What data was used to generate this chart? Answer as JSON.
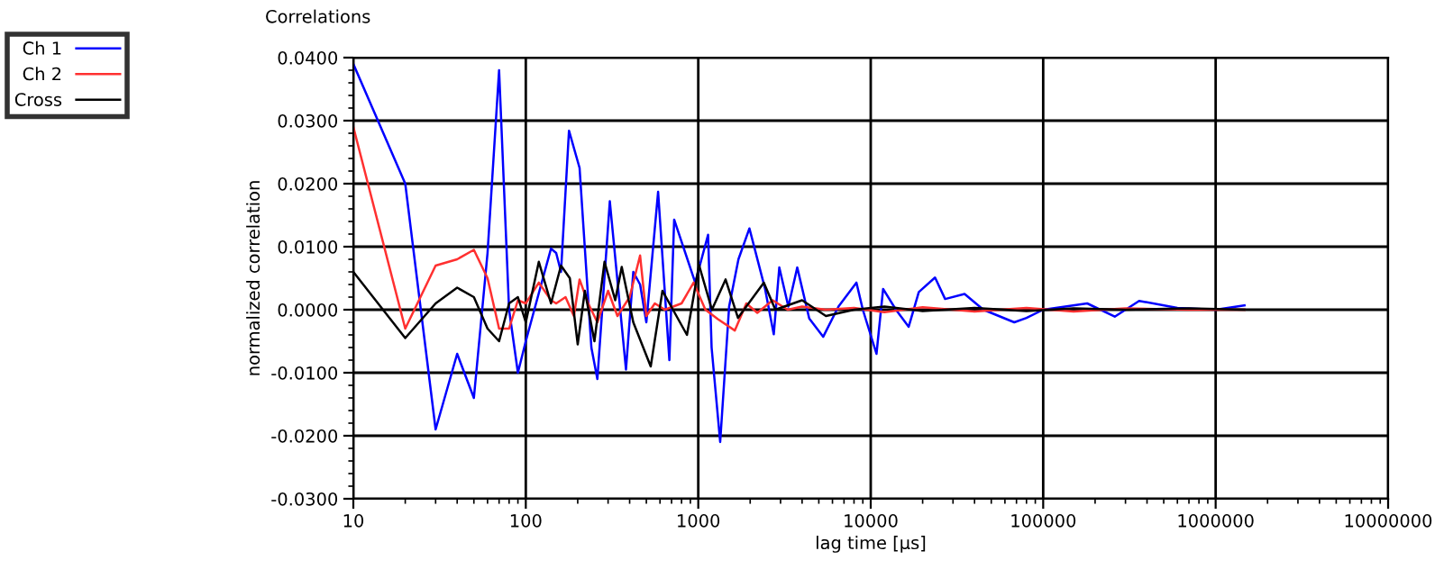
{
  "chart_data": {
    "type": "line",
    "title": "Correlations",
    "xlabel": "lag time [µs]",
    "ylabel": "normalized correlation",
    "log": "x",
    "grid": true,
    "legend": "top left",
    "marker": "none",
    "line_style": "solid",
    "xlim": [
      10,
      10000000
    ],
    "xticks": [
      10,
      100,
      1000,
      10000,
      100000,
      1000000,
      10000000
    ],
    "ylim": [
      -0.03,
      0.04
    ],
    "yticks": [
      {
        "value": -0.03,
        "label": "-0.0300"
      },
      {
        "value": -0.02,
        "label": "-0.0200"
      },
      {
        "value": -0.01,
        "label": "-0.0100"
      },
      {
        "value": 0,
        "label": "0.0000"
      },
      {
        "value": 0.01,
        "label": "0.0100"
      },
      {
        "value": 0.02,
        "label": "0.0200"
      },
      {
        "value": 0.03,
        "label": "0.0300"
      },
      {
        "value": 0.04,
        "label": "0.0400"
      }
    ],
    "series": [
      {
        "name": "Ch 1",
        "color": "#0000ff",
        "x": [
          10,
          20,
          30,
          40,
          50,
          60,
          70,
          80,
          90,
          100,
          120,
          140,
          150,
          160,
          178,
          205,
          240,
          260,
          307,
          381,
          420,
          460,
          500,
          585,
          680,
          725,
          960,
          1140,
          1195,
          1340,
          1510,
          1710,
          1980,
          2440,
          2740,
          2950,
          3330,
          3750,
          4400,
          5300,
          6500,
          8260,
          9000,
          10800,
          11800,
          14000,
          16600,
          19000,
          23600,
          27000,
          35000,
          45000,
          68000,
          80000,
          100000,
          180000,
          260000,
          360000,
          600000,
          1000000,
          1470000
        ],
        "values": [
          0.039,
          0.02,
          -0.019,
          -0.007,
          -0.014,
          0.009,
          0.038,
          0.0,
          -0.01,
          -0.005,
          0.003,
          0.0097,
          0.009,
          0.006,
          0.0284,
          0.0225,
          -0.006,
          -0.011,
          0.0172,
          -0.0095,
          0.006,
          0.004,
          -0.002,
          0.0187,
          -0.008,
          0.0143,
          0.0043,
          0.0119,
          -0.006,
          -0.021,
          0.0005,
          0.008,
          0.0129,
          0.0033,
          -0.0039,
          0.0067,
          0.0005,
          0.0067,
          -0.0014,
          -0.0043,
          0.0005,
          0.0043,
          0.0,
          -0.007,
          0.0033,
          0.0,
          -0.0027,
          0.0028,
          0.0051,
          0.0017,
          0.0025,
          0.0,
          -0.002,
          -0.0013,
          0.0,
          0.001,
          -0.0011,
          0.0014,
          0.0003,
          0.0,
          0.0007
        ]
      },
      {
        "name": "Ch 2",
        "color": "#ff3030",
        "x": [
          10,
          20,
          30,
          40,
          50,
          60,
          70,
          80,
          90,
          100,
          119,
          140,
          150,
          170,
          190,
          205,
          230,
          260,
          300,
          340,
          400,
          460,
          500,
          560,
          640,
          800,
          940,
          1100,
          1300,
          1630,
          1900,
          2200,
          2700,
          3300,
          4000,
          5500,
          8000,
          12000,
          20000,
          40000,
          80000,
          150000,
          300000,
          700000,
          1470000
        ],
        "values": [
          0.029,
          -0.003,
          0.007,
          0.008,
          0.0095,
          0.005,
          -0.003,
          -0.003,
          0.0015,
          0.001,
          0.0043,
          0.0015,
          0.001,
          0.002,
          -0.001,
          0.0048,
          0.001,
          -0.002,
          0.003,
          -0.001,
          0.002,
          0.0086,
          -0.001,
          0.001,
          0.0,
          0.001,
          0.0043,
          0.0,
          -0.0015,
          -0.0033,
          0.001,
          -0.0005,
          0.0015,
          0.0,
          0.0005,
          0.0,
          0.0003,
          -0.0004,
          0.0004,
          -0.0003,
          0.0003,
          -0.0003,
          0.0002,
          0.0,
          0.0
        ]
      },
      {
        "name": "Cross",
        "color": "#000000",
        "x": [
          10,
          20,
          30,
          40,
          50,
          60,
          70,
          80,
          90,
          100,
          119,
          140,
          160,
          180,
          200,
          220,
          250,
          286,
          330,
          360,
          420,
          530,
          620,
          860,
          1010,
          1200,
          1440,
          1700,
          2400,
          2800,
          4000,
          5500,
          8000,
          12000,
          20000,
          40000,
          80000,
          150000,
          300000,
          700000,
          1470000
        ],
        "values": [
          0.006,
          -0.0045,
          0.001,
          0.0035,
          0.002,
          -0.003,
          -0.005,
          0.001,
          0.002,
          -0.002,
          0.0076,
          0.001,
          0.007,
          0.005,
          -0.0055,
          0.003,
          -0.005,
          0.0076,
          0.0015,
          0.0068,
          -0.002,
          -0.009,
          0.003,
          -0.004,
          0.0071,
          0.0,
          0.0048,
          -0.0013,
          0.0043,
          0.0,
          0.0015,
          -0.001,
          0.0,
          0.0005,
          -0.0002,
          0.0003,
          -0.0002,
          0.0002,
          0.0,
          0.0002,
          0.0
        ]
      }
    ]
  }
}
